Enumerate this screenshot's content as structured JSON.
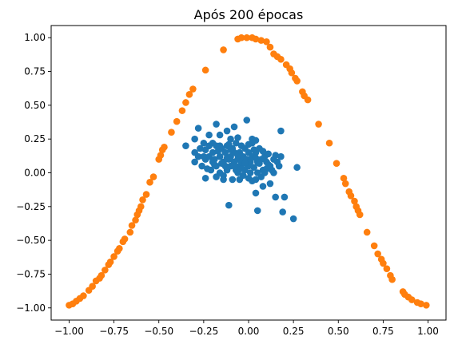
{
  "chart_data": {
    "type": "scatter",
    "title": "Após 200 épocas",
    "xlabel": "",
    "ylabel": "",
    "xlim": [
      -1.1,
      1.1
    ],
    "ylim": [
      -1.09,
      1.09
    ],
    "x_ticks": [
      -1.0,
      -0.75,
      -0.5,
      -0.25,
      0.0,
      0.25,
      0.5,
      0.75,
      1.0
    ],
    "x_tick_labels": [
      "−1.00",
      "−0.75",
      "−0.50",
      "−0.25",
      "0.00",
      "0.25",
      "0.50",
      "0.75",
      "1.00"
    ],
    "y_ticks": [
      -1.0,
      -0.75,
      -0.5,
      -0.25,
      0.0,
      0.25,
      0.5,
      0.75,
      1.0
    ],
    "y_tick_labels": [
      "−1.00",
      "−0.75",
      "−0.50",
      "−0.25",
      "0.00",
      "0.25",
      "0.50",
      "0.75",
      "1.00"
    ],
    "grid": false,
    "legend": "none",
    "series": [
      {
        "color": "#1f77b4",
        "points": [
          [
            -0.16,
            0.2
          ],
          [
            -0.35,
            0.2
          ],
          [
            -0.3,
            0.25
          ],
          [
            -0.3,
            0.15
          ],
          [
            -0.28,
            0.12
          ],
          [
            -0.3,
            0.08
          ],
          [
            -0.24,
            0.17
          ],
          [
            -0.24,
            0.1
          ],
          [
            -0.22,
            0.2
          ],
          [
            -0.22,
            0.12
          ],
          [
            -0.2,
            0.08
          ],
          [
            -0.2,
            0.15
          ],
          [
            -0.18,
            0.2
          ],
          [
            -0.18,
            0.05
          ],
          [
            -0.16,
            0.12
          ],
          [
            -0.16,
            0.0
          ],
          [
            -0.15,
            0.18
          ],
          [
            -0.14,
            0.08
          ],
          [
            -0.13,
            0.15
          ],
          [
            -0.12,
            0.2
          ],
          [
            -0.12,
            0.02
          ],
          [
            -0.11,
            0.1
          ],
          [
            -0.1,
            0.25
          ],
          [
            -0.1,
            0.12
          ],
          [
            -0.1,
            0.05
          ],
          [
            -0.09,
            0.18
          ],
          [
            -0.08,
            0.08
          ],
          [
            -0.08,
            0.15
          ],
          [
            -0.07,
            0.22
          ],
          [
            -0.06,
            0.1
          ],
          [
            -0.06,
            0.0
          ],
          [
            -0.05,
            0.15
          ],
          [
            -0.05,
            0.05
          ],
          [
            -0.04,
            0.2
          ],
          [
            -0.04,
            0.08
          ],
          [
            -0.03,
            0.12
          ],
          [
            -0.02,
            0.02
          ],
          [
            -0.02,
            0.18
          ],
          [
            -0.01,
            0.1
          ],
          [
            0.0,
            0.05
          ],
          [
            0.0,
            0.15
          ],
          [
            0.01,
            0.08
          ],
          [
            0.02,
            0.22
          ],
          [
            0.02,
            0.12
          ],
          [
            0.03,
            0.04
          ],
          [
            0.04,
            0.15
          ],
          [
            0.05,
            0.08
          ],
          [
            0.06,
            0.18
          ],
          [
            0.07,
            0.1
          ],
          [
            0.08,
            0.02
          ],
          [
            0.09,
            0.12
          ],
          [
            0.1,
            0.08
          ],
          [
            0.12,
            0.05
          ],
          [
            0.14,
            0.1
          ],
          [
            0.16,
            0.08
          ],
          [
            0.18,
            0.12
          ],
          [
            -0.26,
            0.05
          ],
          [
            -0.25,
            0.22
          ],
          [
            -0.19,
            0.1
          ],
          [
            -0.14,
            -0.02
          ],
          [
            -0.13,
            0.05
          ],
          [
            -0.09,
            -0.05
          ],
          [
            -0.07,
            0.02
          ],
          [
            -0.03,
            -0.02
          ],
          [
            0.01,
            0.0
          ],
          [
            0.05,
            0.0
          ],
          [
            0.08,
            0.16
          ],
          [
            0.11,
            0.14
          ],
          [
            0.15,
            0.13
          ],
          [
            -0.21,
            0.02
          ],
          [
            -0.17,
            0.16
          ],
          [
            -0.12,
            0.11
          ],
          [
            -0.1,
            0.17
          ],
          [
            -0.06,
            0.13
          ],
          [
            -0.02,
            0.07
          ],
          [
            0.03,
            0.17
          ],
          [
            0.04,
            0.11
          ],
          [
            -0.15,
            0.07
          ],
          [
            -0.2,
            0.22
          ],
          [
            -0.27,
            0.18
          ],
          [
            -0.23,
            0.03
          ],
          [
            -0.11,
            0.21
          ],
          [
            -0.08,
            0.05
          ],
          [
            0.0,
            0.21
          ],
          [
            -0.18,
            0.36
          ],
          [
            -0.12,
            0.31
          ],
          [
            -0.08,
            0.34
          ],
          [
            -0.01,
            0.39
          ],
          [
            -0.06,
            0.26
          ],
          [
            0.02,
            0.25
          ],
          [
            0.04,
            0.24
          ],
          [
            -0.22,
            0.28
          ],
          [
            -0.16,
            0.28
          ],
          [
            -0.28,
            0.33
          ],
          [
            0.18,
            0.31
          ],
          [
            0.0,
            -0.04
          ],
          [
            0.02,
            -0.06
          ],
          [
            0.04,
            -0.05
          ],
          [
            0.07,
            -0.03
          ],
          [
            0.1,
            0.03
          ],
          [
            0.14,
            0.0
          ],
          [
            0.12,
            -0.08
          ],
          [
            0.17,
            0.05
          ],
          [
            -0.18,
            -0.03
          ],
          [
            -0.14,
            -0.05
          ],
          [
            -0.05,
            -0.05
          ],
          [
            -0.24,
            -0.04
          ],
          [
            0.04,
            -0.15
          ],
          [
            0.08,
            -0.1
          ],
          [
            0.15,
            -0.18
          ],
          [
            0.2,
            -0.18
          ],
          [
            0.19,
            -0.29
          ],
          [
            0.05,
            -0.28
          ],
          [
            0.25,
            -0.34
          ],
          [
            0.27,
            0.04
          ],
          [
            -0.11,
            -0.24
          ],
          [
            0.09,
            0.0
          ],
          [
            0.11,
            0.06
          ],
          [
            0.06,
            0.07
          ],
          [
            -0.04,
            0.03
          ],
          [
            -0.25,
            0.12
          ],
          [
            -0.19,
            0.06
          ],
          [
            0.13,
            0.02
          ]
        ]
      },
      {
        "color": "#ff7f0e",
        "points": [
          [
            -1.0,
            -0.98
          ],
          [
            -0.98,
            -0.97
          ],
          [
            -0.96,
            -0.95
          ],
          [
            -0.94,
            -0.93
          ],
          [
            -0.92,
            -0.91
          ],
          [
            -0.89,
            -0.87
          ],
          [
            -0.87,
            -0.84
          ],
          [
            -0.85,
            -0.8
          ],
          [
            -0.83,
            -0.78
          ],
          [
            -0.82,
            -0.76
          ],
          [
            -0.8,
            -0.72
          ],
          [
            -0.78,
            -0.68
          ],
          [
            -0.77,
            -0.66
          ],
          [
            -0.75,
            -0.62
          ],
          [
            -0.73,
            -0.58
          ],
          [
            -0.72,
            -0.56
          ],
          [
            -0.7,
            -0.51
          ],
          [
            -0.69,
            -0.49
          ],
          [
            -0.66,
            -0.44
          ],
          [
            -0.65,
            -0.39
          ],
          [
            -0.63,
            -0.35
          ],
          [
            -0.62,
            -0.31
          ],
          [
            -0.61,
            -0.28
          ],
          [
            -0.6,
            -0.25
          ],
          [
            -0.59,
            -0.2
          ],
          [
            -0.57,
            -0.16
          ],
          [
            -0.55,
            -0.07
          ],
          [
            -0.53,
            -0.03
          ],
          [
            -0.5,
            0.1
          ],
          [
            -0.49,
            0.13
          ],
          [
            -0.48,
            0.17
          ],
          [
            -0.47,
            0.19
          ],
          [
            -0.43,
            0.3
          ],
          [
            -0.4,
            0.38
          ],
          [
            -0.37,
            0.46
          ],
          [
            -0.35,
            0.52
          ],
          [
            -0.33,
            0.58
          ],
          [
            -0.31,
            0.62
          ],
          [
            -0.24,
            0.76
          ],
          [
            -0.14,
            0.91
          ],
          [
            -0.06,
            0.99
          ],
          [
            -0.04,
            1.0
          ],
          [
            -0.01,
            1.0
          ],
          [
            0.02,
            1.0
          ],
          [
            0.04,
            0.99
          ],
          [
            0.07,
            0.98
          ],
          [
            0.1,
            0.97
          ],
          [
            0.12,
            0.93
          ],
          [
            0.14,
            0.88
          ],
          [
            0.16,
            0.86
          ],
          [
            0.18,
            0.84
          ],
          [
            0.21,
            0.8
          ],
          [
            0.23,
            0.77
          ],
          [
            0.24,
            0.74
          ],
          [
            0.26,
            0.7
          ],
          [
            0.27,
            0.68
          ],
          [
            0.3,
            0.6
          ],
          [
            0.31,
            0.57
          ],
          [
            0.33,
            0.54
          ],
          [
            0.39,
            0.36
          ],
          [
            0.45,
            0.22
          ],
          [
            0.49,
            0.07
          ],
          [
            0.53,
            -0.04
          ],
          [
            0.54,
            -0.08
          ],
          [
            0.56,
            -0.14
          ],
          [
            0.57,
            -0.17
          ],
          [
            0.59,
            -0.21
          ],
          [
            0.6,
            -0.25
          ],
          [
            0.61,
            -0.28
          ],
          [
            0.62,
            -0.31
          ],
          [
            0.66,
            -0.44
          ],
          [
            0.7,
            -0.54
          ],
          [
            0.72,
            -0.6
          ],
          [
            0.74,
            -0.64
          ],
          [
            0.75,
            -0.67
          ],
          [
            0.77,
            -0.71
          ],
          [
            0.79,
            -0.76
          ],
          [
            0.8,
            -0.79
          ],
          [
            0.86,
            -0.88
          ],
          [
            0.87,
            -0.9
          ],
          [
            0.89,
            -0.92
          ],
          [
            0.91,
            -0.94
          ],
          [
            0.94,
            -0.96
          ],
          [
            0.96,
            -0.97
          ],
          [
            0.99,
            -0.98
          ]
        ]
      }
    ]
  }
}
